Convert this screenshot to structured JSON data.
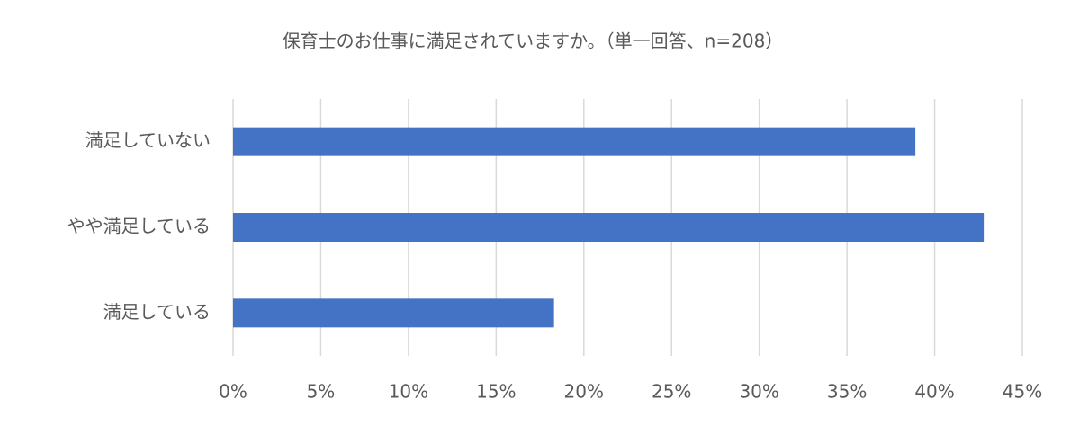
{
  "chart_data": {
    "type": "bar",
    "orientation": "horizontal",
    "title": "保育士のお仕事に満足されていますか。（単一回答、n=208）",
    "categories": [
      "満足していない",
      "やや満足している",
      "満足している"
    ],
    "values": [
      38.9,
      42.8,
      18.3
    ],
    "color": "#4472c4",
    "xlim": [
      0,
      45
    ],
    "xticks": [
      {
        "value": 0,
        "label": "0%"
      },
      {
        "value": 5,
        "label": "5%"
      },
      {
        "value": 10,
        "label": "10%"
      },
      {
        "value": 15,
        "label": "15%"
      },
      {
        "value": 20,
        "label": "20%"
      },
      {
        "value": 25,
        "label": "25%"
      },
      {
        "value": 30,
        "label": "30%"
      },
      {
        "value": 35,
        "label": "35%"
      },
      {
        "value": 40,
        "label": "40%"
      },
      {
        "value": 45,
        "label": "45%"
      }
    ],
    "grid": true
  }
}
